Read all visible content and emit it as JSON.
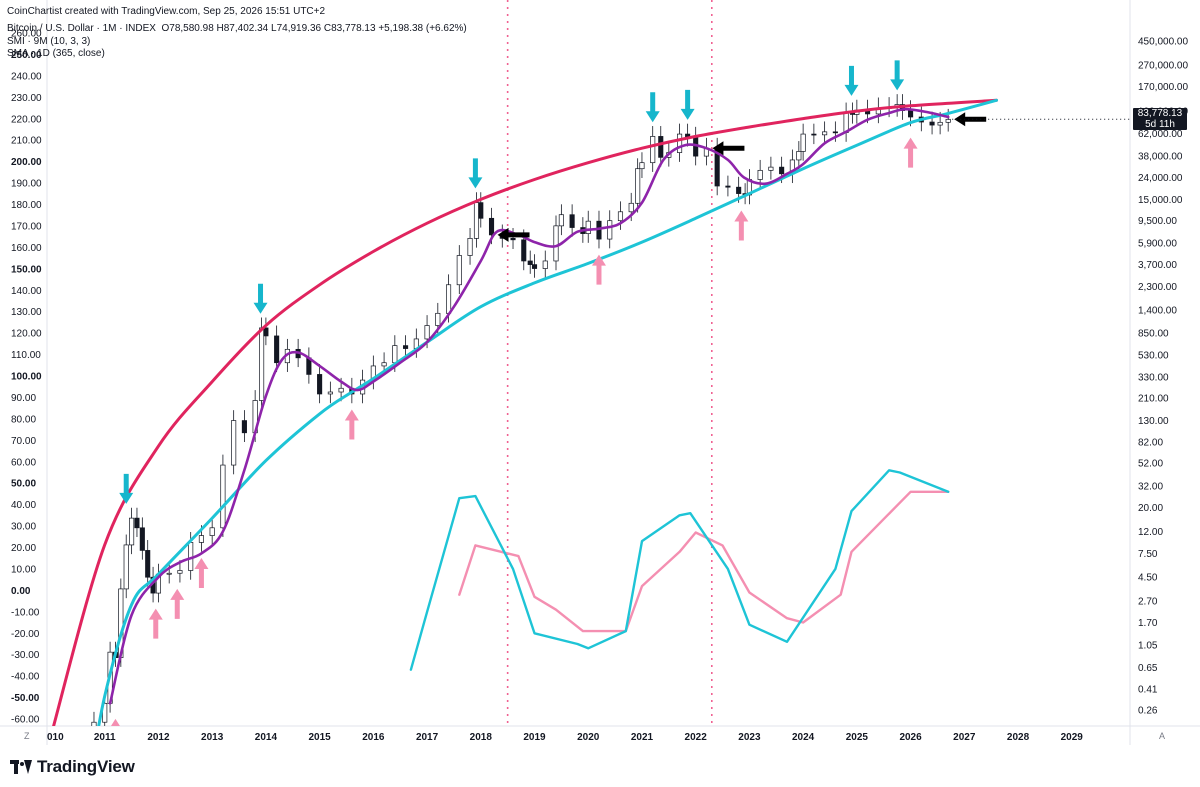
{
  "header": {
    "credit": "CoinChartist created with TradingView.com, Sep 25, 2026 15:51 UTC+2",
    "symbol_line": "Bitcoin / U.S. Dollar · 1M · INDEX",
    "ohlc": "O78,580.98 H87,402.34 L74,919.36 C83,778.13 +5,198.38 (+6.62%)",
    "indicator_1": "SMI · 9M (10, 3, 3)",
    "indicator_2": "SMA · 1D (365, close)"
  },
  "price_tag": {
    "price": "83,778.13",
    "countdown": "5d 11h"
  },
  "corner_left": "Z",
  "corner_right": "A",
  "brand": "TradingView",
  "colors": {
    "upper_curve": "#e0245e",
    "lower_curve": "#1ec4d6",
    "sma": "#8e24aa",
    "smi_line": "#1ec4d6",
    "smi_signal": "#f48fb1",
    "top_arrow": "#16b6cc",
    "bottom_arrow": "#f48fb1",
    "sell_arrow": "#000000",
    "cycle_line": "#f06292"
  },
  "chart_data": {
    "type": "line",
    "x_axis": {
      "labels": [
        "010",
        "2011",
        "2012",
        "2013",
        "2014",
        "2015",
        "2016",
        "2017",
        "2018",
        "2019",
        "2020",
        "2021",
        "2022",
        "2023",
        "2024",
        "2025",
        "2026",
        "2027",
        "2028",
        "2029"
      ],
      "range": [
        2010,
        2030
      ]
    },
    "left_axis": {
      "labels": [
        "260.00",
        "250.00",
        "240.00",
        "230.00",
        "220.00",
        "210.00",
        "200.00",
        "190.00",
        "180.00",
        "170.00",
        "160.00",
        "150.00",
        "140.00",
        "130.00",
        "120.00",
        "110.00",
        "100.00",
        "90.00",
        "80.00",
        "70.00",
        "60.00",
        "50.00",
        "40.00",
        "30.00",
        "20.00",
        "10.00",
        "0.00",
        "-10.00",
        "-20.00",
        "-30.00",
        "-40.00",
        "-50.00",
        "-60.00"
      ],
      "bold": [
        "250.00",
        "200.00",
        "150.00",
        "100.00",
        "50.00",
        "0.00",
        "-50.00"
      ]
    },
    "right_axis": {
      "scale": "log",
      "labels": [
        "450,000.00",
        "270,000.00",
        "170,000.00",
        "100,000.00",
        "62,000.00",
        "38,000.00",
        "24,000.00",
        "15,000.00",
        "9,500.00",
        "5,900.00",
        "3,700.00",
        "2,300.00",
        "1,400.00",
        "850.00",
        "530.00",
        "330.00",
        "210.00",
        "130.00",
        "82.00",
        "52.00",
        "32.00",
        "20.00",
        "12.00",
        "7.50",
        "4.50",
        "2.70",
        "1.70",
        "1.05",
        "0.65",
        "0.41",
        "0.26"
      ]
    },
    "price_candles_monthly_close": [
      [
        2010.6,
        0.07
      ],
      [
        2010.8,
        0.2
      ],
      [
        2011.0,
        0.3
      ],
      [
        2011.1,
        0.9
      ],
      [
        2011.2,
        0.8
      ],
      [
        2011.3,
        3.5
      ],
      [
        2011.4,
        9
      ],
      [
        2011.5,
        16
      ],
      [
        2011.6,
        13
      ],
      [
        2011.7,
        8
      ],
      [
        2011.8,
        4.5
      ],
      [
        2011.9,
        3.2
      ],
      [
        2012.0,
        4.8
      ],
      [
        2012.2,
        4.9
      ],
      [
        2012.4,
        5.2
      ],
      [
        2012.6,
        9.5
      ],
      [
        2012.8,
        11
      ],
      [
        2013.0,
        13
      ],
      [
        2013.2,
        50
      ],
      [
        2013.4,
        130
      ],
      [
        2013.6,
        100
      ],
      [
        2013.8,
        200
      ],
      [
        2013.92,
        950
      ],
      [
        2014.0,
        800
      ],
      [
        2014.2,
        450
      ],
      [
        2014.4,
        600
      ],
      [
        2014.6,
        500
      ],
      [
        2014.8,
        350
      ],
      [
        2015.0,
        230
      ],
      [
        2015.2,
        240
      ],
      [
        2015.4,
        260
      ],
      [
        2015.6,
        230
      ],
      [
        2015.8,
        310
      ],
      [
        2016.0,
        420
      ],
      [
        2016.2,
        450
      ],
      [
        2016.4,
        650
      ],
      [
        2016.6,
        610
      ],
      [
        2016.8,
        750
      ],
      [
        2017.0,
        1000
      ],
      [
        2017.2,
        1300
      ],
      [
        2017.4,
        2400
      ],
      [
        2017.6,
        4500
      ],
      [
        2017.8,
        6500
      ],
      [
        2017.92,
        14000
      ],
      [
        2018.0,
        10000
      ],
      [
        2018.2,
        7000
      ],
      [
        2018.4,
        6500
      ],
      [
        2018.6,
        6300
      ],
      [
        2018.8,
        4000
      ],
      [
        2018.92,
        3700
      ],
      [
        2019.0,
        3400
      ],
      [
        2019.2,
        4000
      ],
      [
        2019.4,
        8500
      ],
      [
        2019.5,
        10800
      ],
      [
        2019.7,
        8200
      ],
      [
        2019.9,
        7200
      ],
      [
        2020.0,
        9400
      ],
      [
        2020.2,
        6400
      ],
      [
        2020.4,
        9500
      ],
      [
        2020.6,
        11500
      ],
      [
        2020.8,
        13800
      ],
      [
        2020.92,
        29000
      ],
      [
        2021.0,
        33000
      ],
      [
        2021.2,
        58000
      ],
      [
        2021.35,
        37000
      ],
      [
        2021.5,
        41000
      ],
      [
        2021.7,
        61000
      ],
      [
        2021.85,
        57000
      ],
      [
        2022.0,
        38000
      ],
      [
        2022.2,
        45000
      ],
      [
        2022.4,
        20000
      ],
      [
        2022.6,
        19500
      ],
      [
        2022.8,
        17000
      ],
      [
        2022.92,
        16500
      ],
      [
        2023.0,
        23000
      ],
      [
        2023.2,
        28000
      ],
      [
        2023.4,
        30000
      ],
      [
        2023.6,
        26000
      ],
      [
        2023.8,
        35000
      ],
      [
        2023.92,
        42000
      ],
      [
        2024.0,
        61000
      ],
      [
        2024.2,
        60000
      ],
      [
        2024.4,
        64000
      ],
      [
        2024.6,
        63000
      ],
      [
        2024.8,
        96000
      ],
      [
        2024.92,
        93000
      ],
      [
        2025.0,
        102000
      ],
      [
        2025.2,
        94000
      ],
      [
        2025.4,
        107000
      ],
      [
        2025.6,
        108000
      ],
      [
        2025.75,
        115000
      ],
      [
        2025.85,
        101000
      ],
      [
        2026.0,
        88000
      ],
      [
        2026.2,
        79000
      ],
      [
        2026.4,
        74000
      ],
      [
        2026.55,
        78500
      ],
      [
        2026.7,
        83778
      ]
    ],
    "sma_365_points": [
      [
        2011.1,
        0.3
      ],
      [
        2011.5,
        2.0
      ],
      [
        2012.0,
        4.5
      ],
      [
        2012.4,
        6.2
      ],
      [
        2012.8,
        7.5
      ],
      [
        2013.2,
        12
      ],
      [
        2013.6,
        45
      ],
      [
        2014.0,
        220
      ],
      [
        2014.3,
        480
      ],
      [
        2014.6,
        560
      ],
      [
        2015.0,
        420
      ],
      [
        2015.4,
        300
      ],
      [
        2015.7,
        250
      ],
      [
        2016.0,
        300
      ],
      [
        2016.5,
        450
      ],
      [
        2017.0,
        700
      ],
      [
        2017.5,
        1500
      ],
      [
        2018.0,
        4000
      ],
      [
        2018.3,
        7500
      ],
      [
        2018.7,
        7000
      ],
      [
        2019.0,
        6000
      ],
      [
        2019.4,
        5500
      ],
      [
        2019.8,
        7500
      ],
      [
        2020.2,
        8000
      ],
      [
        2020.6,
        9000
      ],
      [
        2021.0,
        14000
      ],
      [
        2021.4,
        35000
      ],
      [
        2021.8,
        48000
      ],
      [
        2022.2,
        45000
      ],
      [
        2022.6,
        35000
      ],
      [
        2022.9,
        24000
      ],
      [
        2023.3,
        21000
      ],
      [
        2023.7,
        26000
      ],
      [
        2024.0,
        32000
      ],
      [
        2024.4,
        50000
      ],
      [
        2024.8,
        64000
      ],
      [
        2025.2,
        83000
      ],
      [
        2025.6,
        96000
      ],
      [
        2025.9,
        104000
      ],
      [
        2026.3,
        98000
      ],
      [
        2026.7,
        88000
      ]
    ],
    "upper_curve_points": [
      [
        2010.0,
        0.15
      ],
      [
        2011.0,
        9
      ],
      [
        2012.0,
        75
      ],
      [
        2013.0,
        300
      ],
      [
        2014.0,
        1000
      ],
      [
        2015.0,
        2400
      ],
      [
        2016.0,
        4900
      ],
      [
        2017.0,
        9000
      ],
      [
        2018.0,
        15000
      ],
      [
        2019.0,
        23000
      ],
      [
        2020.0,
        33000
      ],
      [
        2021.0,
        45000
      ],
      [
        2022.0,
        58000
      ],
      [
        2023.0,
        71000
      ],
      [
        2024.0,
        85000
      ],
      [
        2025.0,
        100000
      ],
      [
        2026.0,
        112000
      ],
      [
        2027.6,
        126000
      ]
    ],
    "lower_curve_points": [
      [
        2010.7,
        0.05
      ],
      [
        2011.0,
        0.35
      ],
      [
        2011.5,
        2.5
      ],
      [
        2012.0,
        4.8
      ],
      [
        2013.0,
        16
      ],
      [
        2014.0,
        55
      ],
      [
        2015.0,
        150
      ],
      [
        2015.6,
        240
      ],
      [
        2016.0,
        320
      ],
      [
        2017.0,
        700
      ],
      [
        2018.0,
        1500
      ],
      [
        2019.0,
        2500
      ],
      [
        2020.0,
        3800
      ],
      [
        2021.0,
        6000
      ],
      [
        2022.0,
        10000
      ],
      [
        2023.0,
        17000
      ],
      [
        2024.0,
        29000
      ],
      [
        2025.0,
        48000
      ],
      [
        2026.0,
        78000
      ],
      [
        2026.7,
        95000
      ],
      [
        2027.6,
        126000
      ]
    ],
    "smi_points": [
      [
        2016.7,
        -37
      ],
      [
        2017.0,
        -10
      ],
      [
        2017.6,
        43
      ],
      [
        2017.9,
        44
      ],
      [
        2018.6,
        10
      ],
      [
        2019.0,
        -20
      ],
      [
        2019.8,
        -25
      ],
      [
        2020.0,
        -27
      ],
      [
        2020.7,
        -19
      ],
      [
        2021.0,
        23
      ],
      [
        2021.7,
        35
      ],
      [
        2021.9,
        36
      ],
      [
        2022.6,
        10
      ],
      [
        2023.0,
        -16
      ],
      [
        2023.7,
        -24
      ],
      [
        2024.6,
        10
      ],
      [
        2024.9,
        37
      ],
      [
        2025.6,
        56
      ],
      [
        2025.8,
        55
      ],
      [
        2026.7,
        46
      ]
    ],
    "smi_signal_points": [
      [
        2017.6,
        -2
      ],
      [
        2017.9,
        21
      ],
      [
        2018.7,
        16
      ],
      [
        2019.0,
        -3
      ],
      [
        2019.4,
        -9
      ],
      [
        2019.9,
        -19
      ],
      [
        2020.7,
        -19
      ],
      [
        2021.0,
        2
      ],
      [
        2021.7,
        18
      ],
      [
        2022.0,
        27
      ],
      [
        2022.5,
        21
      ],
      [
        2023.0,
        -1
      ],
      [
        2023.7,
        -13
      ],
      [
        2024.0,
        -15
      ],
      [
        2024.7,
        -2
      ],
      [
        2024.9,
        18
      ],
      [
        2026.0,
        46
      ],
      [
        2026.7,
        46
      ]
    ],
    "top_arrows_x": [
      2011.4,
      2013.9,
      2017.9,
      2021.2,
      2021.85,
      2024.9,
      2025.75
    ],
    "bottom_arrows_x": [
      2011.2,
      2011.95,
      2012.35,
      2012.8,
      2015.6,
      2020.2,
      2022.85,
      2026.0
    ],
    "sell_arrows_x": [
      2018.2,
      2022.2,
      2026.7
    ],
    "cycle_lines_x": [
      2018.5,
      2022.3
    ],
    "current_price": 83778.13
  }
}
